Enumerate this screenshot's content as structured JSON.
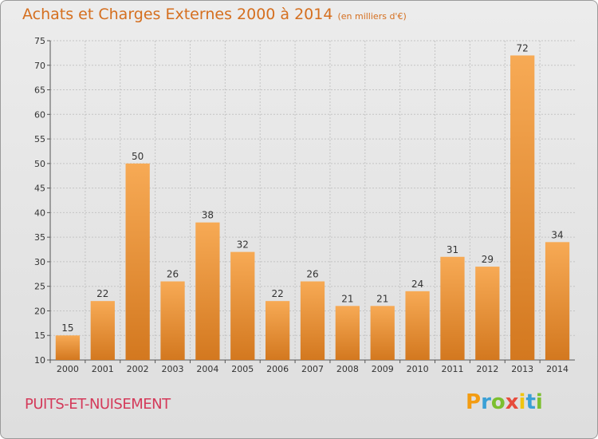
{
  "title": "Achats et Charges Externes 2000 à 2014",
  "unit": "(en milliers d'€)",
  "commune": "PUITS-ET-NUISEMENT",
  "logo": "Proxiti",
  "colors": {
    "bar_light": "#f7aa55",
    "bar_dark": "#d3781f",
    "title": "#d56f1f",
    "commune": "#d43a5a"
  },
  "chart_data": {
    "type": "bar",
    "title": "Achats et Charges Externes 2000 à 2014",
    "subtitle": "(en milliers d'€)",
    "categories": [
      "2000",
      "2001",
      "2002",
      "2003",
      "2004",
      "2005",
      "2006",
      "2007",
      "2008",
      "2009",
      "2010",
      "2011",
      "2012",
      "2013",
      "2014"
    ],
    "values": [
      15,
      22,
      50,
      26,
      38,
      32,
      22,
      26,
      21,
      21,
      24,
      31,
      29,
      72,
      34
    ],
    "ylim": [
      10,
      75
    ],
    "yticks": [
      10,
      15,
      20,
      25,
      30,
      35,
      40,
      45,
      50,
      55,
      60,
      65,
      70,
      75
    ],
    "grid": true,
    "xlabel": "",
    "ylabel": ""
  }
}
